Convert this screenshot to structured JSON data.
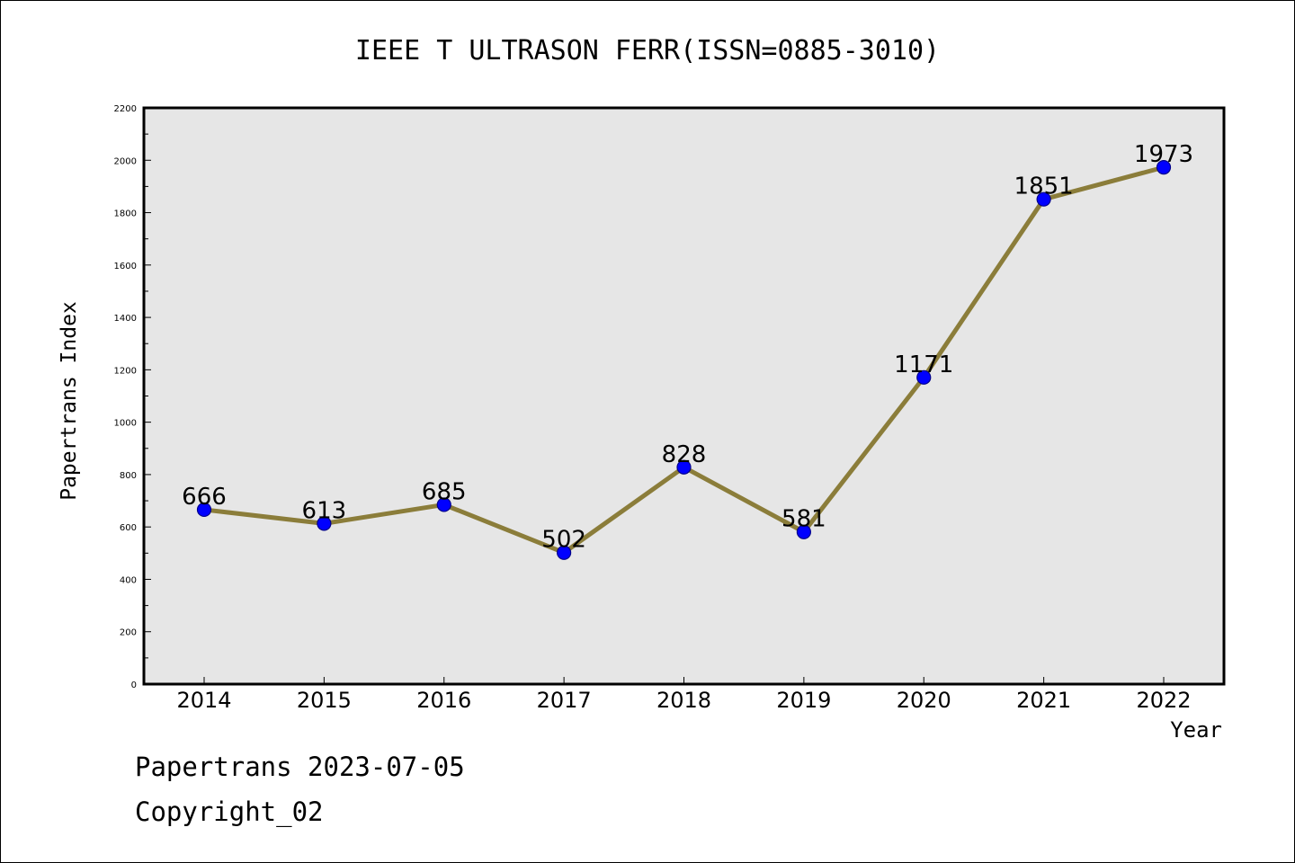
{
  "chart_data": {
    "type": "line",
    "title": "IEEE T ULTRASON FERR(ISSN=0885-3010)",
    "xlabel": "Year",
    "ylabel": "Papertrans Index",
    "categories": [
      "2014",
      "2015",
      "2016",
      "2017",
      "2018",
      "2019",
      "2020",
      "2021",
      "2022"
    ],
    "series": [
      {
        "values": [
          666,
          613,
          685,
          502,
          828,
          581,
          1171,
          1851,
          1973
        ],
        "data_labels": [
          "666",
          "613",
          "685",
          "502",
          "828",
          "581",
          "1171",
          "1851",
          "1973"
        ]
      }
    ],
    "ylim": [
      0,
      2200
    ],
    "yticks": [
      0,
      200,
      400,
      600,
      800,
      1000,
      1200,
      1400,
      1600,
      1800,
      2000,
      2200
    ],
    "ytick_labels": [
      "0",
      "200",
      "400",
      "600",
      "800",
      "1000",
      "1200",
      "1400",
      "1600",
      "1800",
      "2000",
      "2200"
    ],
    "grid": false,
    "legend": "none",
    "colors": {
      "plot_background": "#e6e6e6",
      "line": "#8b7d3a",
      "marker_fill": "#0000ff",
      "marker_edge": "#00008b",
      "axis": "#000000"
    }
  },
  "footer": {
    "date_line": "Papertrans 2023-07-05",
    "copyright": "Copyright_02"
  }
}
